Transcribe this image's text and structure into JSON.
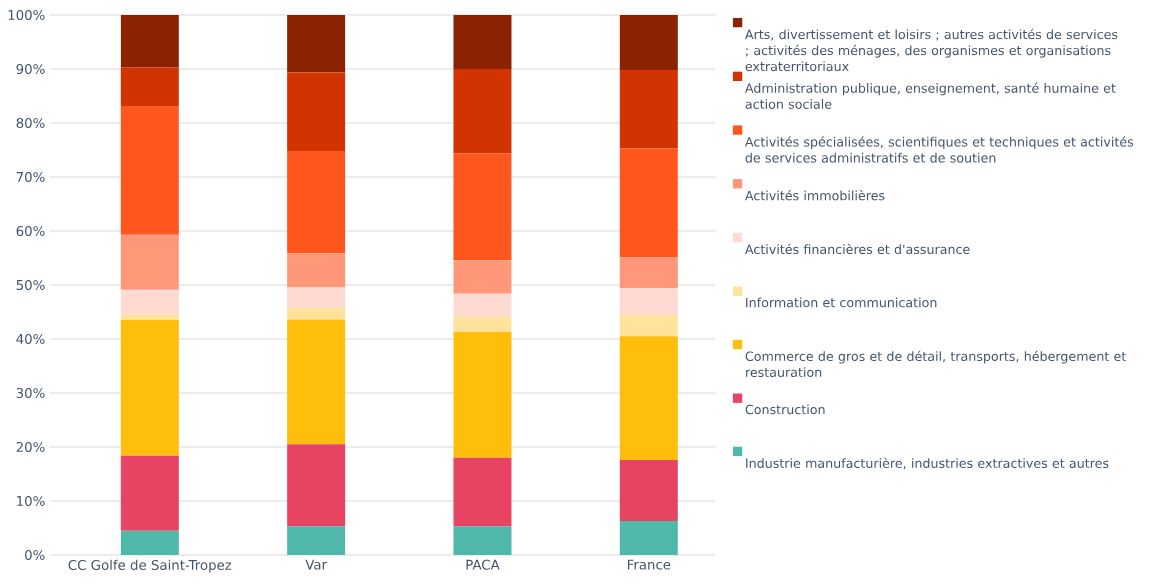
{
  "chart_data": {
    "type": "bar",
    "stacked": true,
    "categories": [
      "CC Golfe de Saint-Tropez",
      "Var",
      "PACA",
      "France"
    ],
    "ylim": [
      0,
      100
    ],
    "yticks": [
      {
        "value": 0,
        "label": "0%"
      },
      {
        "value": 10,
        "label": "10%"
      },
      {
        "value": 20,
        "label": "20%"
      },
      {
        "value": 30,
        "label": "30%"
      },
      {
        "value": 40,
        "label": "40%"
      },
      {
        "value": 50,
        "label": "50%"
      },
      {
        "value": 60,
        "label": "60%"
      },
      {
        "value": 70,
        "label": "70%"
      },
      {
        "value": 80,
        "label": "80%"
      },
      {
        "value": 90,
        "label": "90%"
      },
      {
        "value": 100,
        "label": "100%"
      }
    ],
    "grid": "y",
    "legend": "right",
    "series": [
      {
        "name": "Industrie manufacturière, industries extractives et autres",
        "color": "#50b8a8",
        "values": [
          4.5,
          5.3,
          5.3,
          6.3
        ]
      },
      {
        "name": "Construction",
        "color": "#e64462",
        "values": [
          13.9,
          15.2,
          12.7,
          11.3
        ]
      },
      {
        "name": "Commerce de gros et de détail, transports, hébergement et restauration",
        "color": "#ffbe0b",
        "values": [
          25.1,
          23.1,
          23.3,
          22.9
        ]
      },
      {
        "name": "Information et communication",
        "color": "#ffe39c",
        "values": [
          1.1,
          2.2,
          2.8,
          4.0
        ]
      },
      {
        "name": "Activités financières et d'assurance",
        "color": "#ffdad2",
        "values": [
          4.5,
          3.8,
          4.3,
          4.9
        ]
      },
      {
        "name": "Activités immobilières",
        "color": "#ff9778",
        "values": [
          10.2,
          6.3,
          6.2,
          5.7
        ]
      },
      {
        "name": "Activités spécialisées, scientifiques et techniques et activités de services administratifs et de soutien",
        "color": "#ff561e",
        "values": [
          23.7,
          18.9,
          19.8,
          20.2
        ]
      },
      {
        "name": "Administration publique, enseignement, santé humaine et action sociale",
        "color": "#d13400",
        "values": [
          7.3,
          14.6,
          15.6,
          14.5
        ]
      },
      {
        "name": "Arts, divertissement et loisirs ; autres activités de services ; activités des ménages, des organismes et organisations extraterritoriaux",
        "color": "#8b2200",
        "values": [
          9.7,
          10.6,
          10.0,
          10.2
        ]
      }
    ]
  }
}
